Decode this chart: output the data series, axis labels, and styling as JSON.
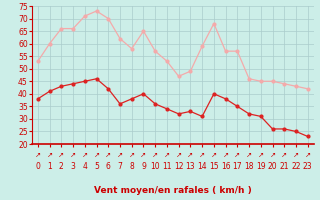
{
  "hours": [
    0,
    1,
    2,
    3,
    4,
    5,
    6,
    7,
    8,
    9,
    10,
    11,
    12,
    13,
    14,
    15,
    16,
    17,
    18,
    19,
    20,
    21,
    22,
    23
  ],
  "wind_avg": [
    38,
    41,
    43,
    44,
    45,
    46,
    42,
    36,
    38,
    40,
    36,
    34,
    32,
    33,
    31,
    40,
    38,
    35,
    32,
    31,
    26,
    26,
    25,
    23
  ],
  "wind_gust": [
    53,
    60,
    66,
    66,
    71,
    73,
    70,
    62,
    58,
    65,
    57,
    53,
    47,
    49,
    59,
    68,
    57,
    57,
    46,
    45,
    45,
    44,
    43,
    42
  ],
  "avg_color": "#dd2222",
  "gust_color": "#f4aaaa",
  "bg_color": "#cceee8",
  "grid_color": "#aacccc",
  "spine_color": "#cc0000",
  "tick_color": "#cc0000",
  "label_color": "#cc0000",
  "ylim": [
    20,
    75
  ],
  "yticks": [
    20,
    25,
    30,
    35,
    40,
    45,
    50,
    55,
    60,
    65,
    70,
    75
  ],
  "xlabel": "Vent moyen/en rafales ( km/h )",
  "arrow_char": "↗",
  "tick_fontsize": 5.5,
  "xlabel_fontsize": 6.5
}
